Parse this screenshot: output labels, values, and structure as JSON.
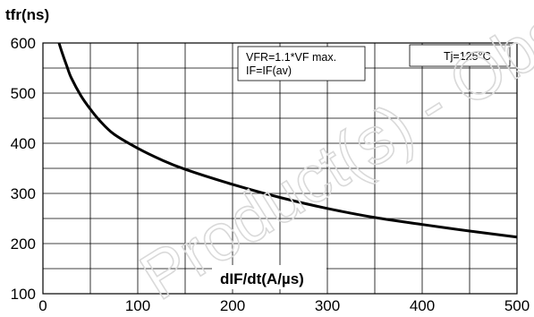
{
  "chart_data": {
    "type": "line",
    "title": "",
    "ylabel": "tfr(ns)",
    "xlabel": "dIF/dt(A/µs)",
    "xlim": [
      0,
      500
    ],
    "ylim": [
      100,
      600
    ],
    "xticks": [
      "0",
      "100",
      "200",
      "300",
      "400",
      "500"
    ],
    "yticks": [
      "100",
      "200",
      "300",
      "400",
      "500",
      "600"
    ],
    "grid": true,
    "annotations": {
      "conditions_line1": "VFR=1.1*VF max.",
      "conditions_line2": "IF=IF(av)",
      "temperature": "Tj=125°C"
    },
    "watermark": "Product(s) - Obsolete Product(s)",
    "series": [
      {
        "x": [
          17,
          20,
          25,
          30,
          40,
          50,
          60,
          75,
          100,
          125,
          150,
          200,
          250,
          300,
          350,
          400,
          450,
          500
        ],
        "y": [
          600,
          582,
          555,
          530,
          495,
          468,
          445,
          418,
          390,
          367,
          348,
          318,
          292,
          270,
          252,
          238,
          225,
          213
        ]
      }
    ]
  }
}
